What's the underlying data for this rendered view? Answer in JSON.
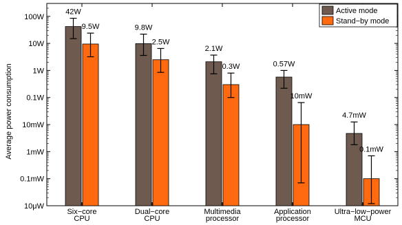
{
  "chart_data": {
    "type": "bar",
    "ylabel": "Average power consumption",
    "yscale": "log",
    "ylim": [
      1e-05,
      300
    ],
    "yticks": [
      {
        "value": 100,
        "label": "100W"
      },
      {
        "value": 10,
        "label": "10W"
      },
      {
        "value": 1,
        "label": "1W"
      },
      {
        "value": 0.1,
        "label": "0.1W"
      },
      {
        "value": 0.01,
        "label": "10mW"
      },
      {
        "value": 0.001,
        "label": "1mW"
      },
      {
        "value": 0.0001,
        "label": "0.1mW"
      },
      {
        "value": 1e-05,
        "label": "10μW"
      }
    ],
    "categories": [
      [
        "Six−core",
        "CPU"
      ],
      [
        "Dual−core",
        "CPU"
      ],
      [
        "Multimedia",
        "processor"
      ],
      [
        "Application",
        "processor"
      ],
      [
        "Ultra−low−power",
        "MCU"
      ]
    ],
    "legend": {
      "position": "top-right"
    },
    "series": [
      {
        "name": "Active mode",
        "color": "#6e5a4e",
        "values": [
          42,
          9.8,
          2.1,
          0.57,
          0.0047
        ],
        "labels": [
          "42W",
          "9.8W",
          "2.1W",
          "0.57W",
          "4.7mW"
        ],
        "err_low": [
          15,
          3.6,
          0.75,
          0.22,
          0.0018
        ],
        "err_high": [
          85,
          22,
          3.7,
          1.0,
          0.0125
        ]
      },
      {
        "name": "Stand−by mode",
        "color": "#ff6a10",
        "values": [
          9.5,
          2.5,
          0.3,
          0.01,
          0.0001
        ],
        "labels": [
          "9.5W",
          "2.5W",
          "0.3W",
          "10mW",
          "0.1mW"
        ],
        "err_low": [
          3.2,
          0.85,
          0.1,
          7e-05,
          1.2e-05
        ],
        "err_high": [
          24,
          6.5,
          0.8,
          0.065,
          0.0007
        ]
      }
    ]
  }
}
